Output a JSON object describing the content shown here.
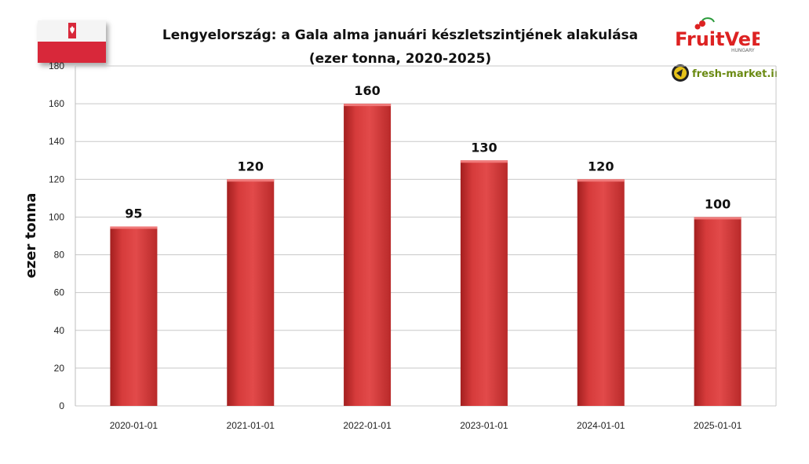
{
  "chart_data": {
    "type": "bar",
    "title": "Lengyelország: a Gala alma januári készletszintjének alakulása",
    "subtitle": "(ezer tonna, 2020-2025)",
    "ylabel": "ezer tonna",
    "xlabel": "",
    "categories": [
      "2020-01-01",
      "2021-01-01",
      "2022-01-01",
      "2023-01-01",
      "2024-01-01",
      "2025-01-01"
    ],
    "values": [
      95,
      120,
      160,
      130,
      120,
      100
    ],
    "ylim": [
      0,
      180
    ],
    "yticks": [
      0,
      20,
      40,
      60,
      80,
      100,
      120,
      140,
      160,
      180
    ],
    "grid": true,
    "bar_color": "#d33b3b"
  },
  "logos": {
    "fruitveb": "FruitVeB",
    "fruitveb_sub": "HUNGARY",
    "freshmarket": "fresh-market.info"
  }
}
